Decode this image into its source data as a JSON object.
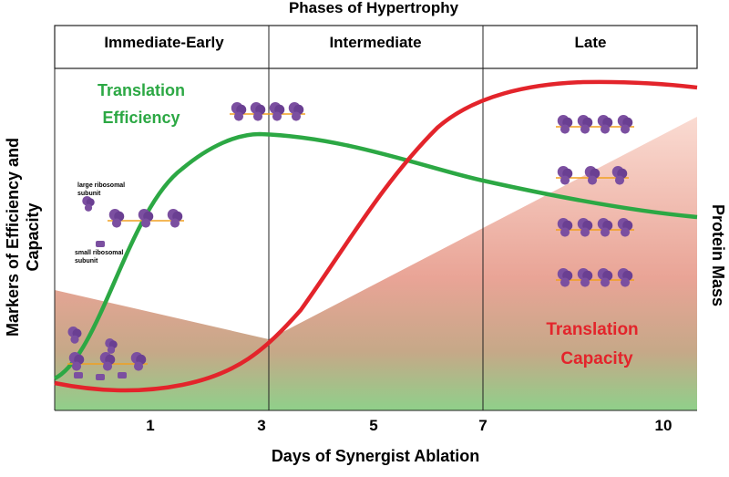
{
  "header": {
    "title": "Phases of Hypertrophy"
  },
  "phases": [
    "Immediate-Early",
    "Intermediate",
    "Late"
  ],
  "x_axis": {
    "label": "Days of Synergist Ablation",
    "ticks": [
      "1",
      "3",
      "5",
      "7",
      "10"
    ]
  },
  "y_axis": {
    "left_label": [
      "Markers of Efficiency and",
      "Capacity"
    ],
    "right_label": "Protein Mass"
  },
  "annotations": {
    "efficiency": [
      "Translation",
      "Efficiency"
    ],
    "capacity": [
      "Translation",
      "Capacity"
    ],
    "large_subunit": [
      "large ribosomal",
      "subunit"
    ],
    "small_subunit": [
      "small ribosomal",
      "subunit"
    ]
  }
}
